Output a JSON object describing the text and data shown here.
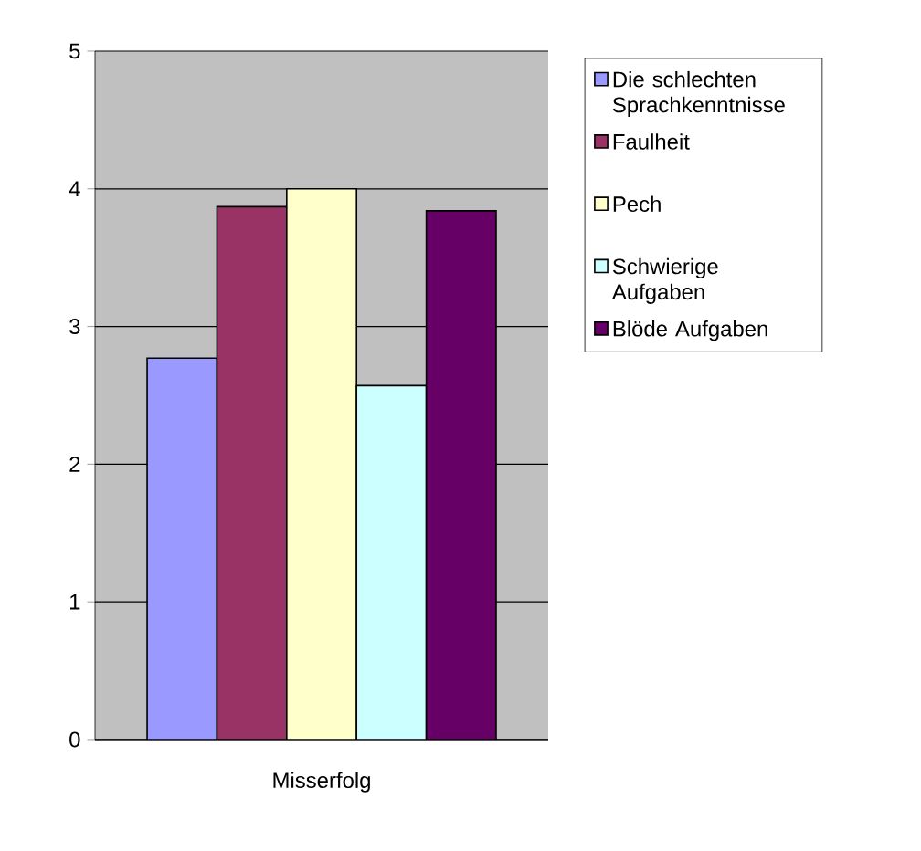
{
  "chart_data": {
    "type": "bar",
    "categories": [
      "Misserfolg"
    ],
    "series": [
      {
        "name": "Die schlechten Sprachkenntnisse",
        "color": "#9999ff",
        "values": [
          2.77
        ]
      },
      {
        "name": "Faulheit",
        "color": "#993366",
        "values": [
          3.87
        ]
      },
      {
        "name": "Pech",
        "color": "#ffffcc",
        "values": [
          4.0
        ]
      },
      {
        "name": "Schwierige Aufgaben",
        "color": "#ccffff",
        "values": [
          2.57
        ]
      },
      {
        "name": "Blöde Aufgaben",
        "color": "#660066",
        "values": [
          3.84
        ]
      }
    ],
    "ylim": [
      0,
      5
    ],
    "yticks": [
      0,
      1,
      2,
      3,
      4,
      5
    ],
    "grid": "y",
    "legend": "right"
  }
}
